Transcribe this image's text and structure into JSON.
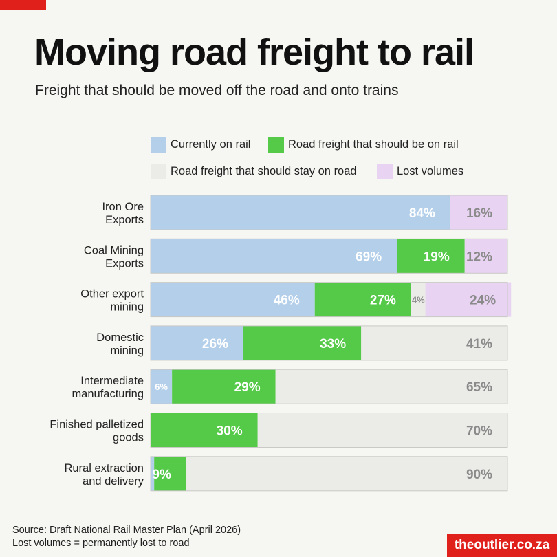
{
  "title": "Moving road freight to rail",
  "subtitle": "Freight that should be moved off the road and onto trains",
  "legend": [
    {
      "label": "Currently on rail",
      "color": "#b3cfea"
    },
    {
      "label": "Road freight that should be on rail",
      "color": "#55c948"
    },
    {
      "label": "Road freight that should stay on road",
      "color": "#ebebe8"
    },
    {
      "label": "Lost volumes",
      "color": "#e8d3f2"
    }
  ],
  "chart_data": {
    "type": "bar",
    "orientation": "horizontal",
    "stacked": true,
    "categories": [
      "Iron Ore Exports",
      "Coal Mining Exports",
      "Other export mining",
      "Domestic mining",
      "Intermediate manufacturing",
      "Finished palletized goods",
      "Rural extraction and delivery"
    ],
    "category_lines": [
      [
        "Iron Ore",
        "Exports"
      ],
      [
        "Coal Mining",
        "Exports"
      ],
      [
        "Other export",
        "mining"
      ],
      [
        "Domestic",
        "mining"
      ],
      [
        "Intermediate",
        "manufacturing"
      ],
      [
        "Finished palletized",
        "goods"
      ],
      [
        "Rural extraction",
        "and delivery"
      ]
    ],
    "series": [
      {
        "name": "Currently on rail",
        "color": "#b3cfea",
        "values": [
          84,
          69,
          46,
          26,
          6,
          0,
          1
        ]
      },
      {
        "name": "Road freight that should be on rail",
        "color": "#55c948",
        "values": [
          0,
          19,
          27,
          33,
          29,
          30,
          9
        ]
      },
      {
        "name": "Road freight that should stay on road",
        "color": "#ebebe8",
        "values": [
          0,
          0,
          4,
          41,
          65,
          70,
          90
        ]
      },
      {
        "name": "Lost volumes",
        "color": "#e8d3f2",
        "values": [
          16,
          12,
          24,
          0,
          0,
          0,
          0
        ]
      }
    ],
    "labels": [
      [
        "84%",
        "",
        "",
        "16%"
      ],
      [
        "69%",
        "19%",
        "",
        "12%"
      ],
      [
        "46%",
        "27%",
        "4%",
        "24%"
      ],
      [
        "26%",
        "33%",
        "41%",
        ""
      ],
      [
        "6%",
        "29%",
        "65%",
        ""
      ],
      [
        "",
        "30%",
        "70%",
        ""
      ],
      [
        "",
        "9%",
        "90%",
        ""
      ]
    ],
    "xlim": [
      0,
      100
    ],
    "grid": false,
    "legend_position": "top"
  },
  "source_lines": [
    "Source: Draft National Rail Master Plan (April 2026)",
    "Lost volumes = permanently lost to road"
  ],
  "brand": "theoutlier.co.za"
}
